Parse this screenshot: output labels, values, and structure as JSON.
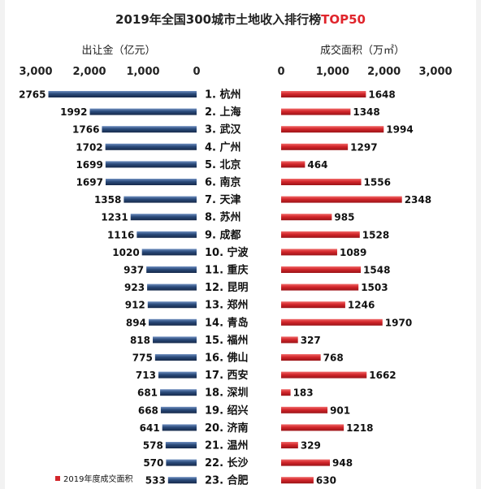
{
  "title": "2019年全国300城市土地收入排行榜",
  "title_accent": "TOP50",
  "colors": {
    "revenue_bar": "#2a4a7a",
    "area_bar": "#d3262b",
    "accent": "#e0252c"
  },
  "chart_data": {
    "type": "bar",
    "categories": [
      "1. 杭州",
      "2. 上海",
      "3. 武汉",
      "4. 广州",
      "5. 北京",
      "6. 南京",
      "7. 天津",
      "8. 苏州",
      "9. 成都",
      "10. 宁波",
      "11. 重庆",
      "12. 昆明",
      "13. 郑州",
      "14. 青岛",
      "15. 福州",
      "16. 佛山",
      "17. 西安",
      "18. 深圳",
      "19. 绍兴",
      "20. 济南",
      "21. 温州",
      "22. 长沙",
      "23. 合肥"
    ],
    "series": [
      {
        "name": "出让金（亿元）",
        "values": [
          2765,
          1992,
          1766,
          1702,
          1699,
          1697,
          1358,
          1231,
          1116,
          1020,
          937,
          923,
          912,
          894,
          818,
          775,
          713,
          681,
          668,
          641,
          578,
          570,
          533
        ],
        "xlim": [
          3000,
          0
        ],
        "ticks": [
          "3,000",
          "2,000",
          "1,000",
          "0"
        ]
      },
      {
        "name": "成交面积（万㎡）",
        "values": [
          1648,
          1348,
          1994,
          1297,
          464,
          1556,
          2348,
          985,
          1528,
          1089,
          1548,
          1503,
          1246,
          1970,
          327,
          768,
          1662,
          183,
          901,
          1218,
          329,
          948,
          630
        ],
        "xlim": [
          0,
          3000
        ],
        "ticks": [
          "0",
          "1,000",
          "2,000",
          "3,000"
        ]
      }
    ],
    "legend": [
      {
        "name": "2019年度成交面积"
      }
    ]
  }
}
